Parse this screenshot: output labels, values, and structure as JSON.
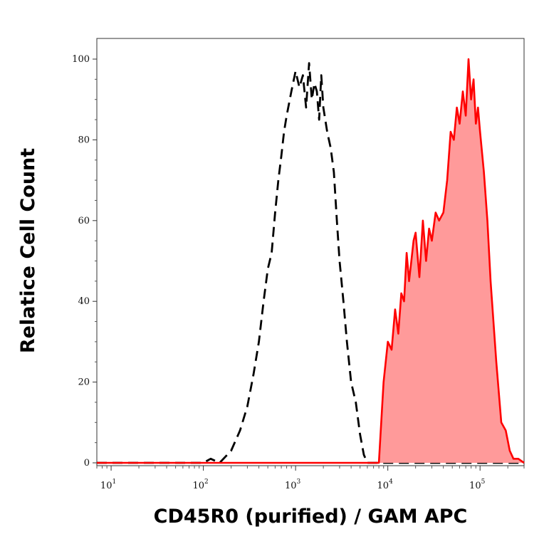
{
  "chart_data": {
    "type": "area",
    "title": "",
    "xlabel": "CD45R0 (purified) / GAM APC",
    "ylabel": "Relatice Cell Count",
    "xscale": "log",
    "xlim": [
      7,
      300000
    ],
    "ylim": [
      0,
      105
    ],
    "y_ticks": [
      0,
      20,
      40,
      60,
      80,
      100
    ],
    "y_tick_labels": [
      "0",
      "20",
      "40",
      "60",
      "80",
      "100"
    ],
    "x_ticks": [
      {
        "value": 10,
        "base": "10",
        "exp": "1"
      },
      {
        "value": 100,
        "base": "10",
        "exp": "2"
      },
      {
        "value": 1000,
        "base": "10",
        "exp": "3"
      },
      {
        "value": 10000,
        "base": "10",
        "exp": "4"
      },
      {
        "value": 100000,
        "base": "10",
        "exp": "5"
      }
    ],
    "grid": false,
    "legend": "none",
    "series": [
      {
        "style": "dashed-outline",
        "color": "#000000",
        "x": [
          7,
          100,
          120,
          150,
          200,
          250,
          300,
          350,
          400,
          450,
          500,
          550,
          600,
          650,
          700,
          750,
          800,
          900,
          1000,
          1100,
          1200,
          1300,
          1400,
          1500,
          1600,
          1700,
          1800,
          1900,
          2000,
          2200,
          2400,
          2600,
          2800,
          3000,
          3300,
          3600,
          4000,
          4500,
          5000,
          5500,
          6000,
          7000,
          300000
        ],
        "y": [
          0,
          0,
          1,
          0,
          3,
          8,
          14,
          22,
          30,
          40,
          48,
          52,
          62,
          70,
          76,
          82,
          86,
          92,
          97,
          93,
          96,
          88,
          99,
          90,
          94,
          92,
          85,
          96,
          88,
          82,
          78,
          72,
          60,
          50,
          40,
          30,
          20,
          15,
          7,
          2,
          0,
          0,
          0
        ]
      },
      {
        "style": "filled",
        "color": "#ff0000",
        "fill": "#ff9a9a",
        "x": [
          7,
          8000,
          9000,
          10000,
          11000,
          12000,
          13000,
          14000,
          15000,
          16000,
          17000,
          18000,
          19000,
          20000,
          22000,
          24000,
          26000,
          28000,
          30000,
          33000,
          36000,
          40000,
          44000,
          48000,
          52000,
          56000,
          60000,
          65000,
          70000,
          75000,
          80000,
          85000,
          90000,
          95000,
          100000,
          110000,
          120000,
          130000,
          150000,
          170000,
          190000,
          210000,
          230000,
          260000,
          300000
        ],
        "y": [
          0,
          0,
          20,
          30,
          28,
          38,
          32,
          42,
          40,
          52,
          45,
          50,
          55,
          57,
          46,
          60,
          50,
          58,
          55,
          62,
          60,
          62,
          70,
          82,
          80,
          88,
          84,
          92,
          86,
          100,
          90,
          95,
          84,
          88,
          82,
          72,
          60,
          45,
          25,
          10,
          8,
          3,
          1,
          1,
          0
        ]
      }
    ]
  }
}
